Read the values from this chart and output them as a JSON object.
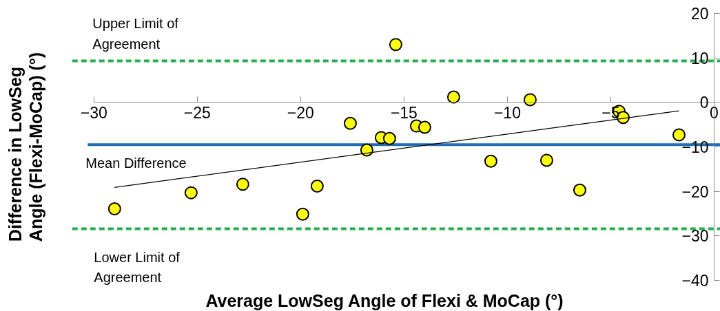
{
  "chart_data": {
    "type": "scatter",
    "xlabel": "Average LowSeg Angle of Flexi & MoCap (°)",
    "ylabel": "Difference in LowSeg\nAngle (Flexi-MoCap) (°)",
    "xlim": [
      -30,
      0
    ],
    "xticks": [
      -30,
      -25,
      -20,
      -15,
      -10,
      -5,
      0
    ],
    "ylim": [
      -40,
      20
    ],
    "yticks": [
      -40,
      -30,
      -20,
      -10,
      0,
      10,
      20
    ],
    "grid": false,
    "series": [
      {
        "color": "#ffff00",
        "marker": "circle",
        "x": [
          -29.0,
          -25.3,
          -22.8,
          -19.9,
          -19.2,
          -17.6,
          -16.8,
          -16.1,
          -15.7,
          -15.4,
          -14.4,
          -14.0,
          -12.6,
          -10.8,
          -8.9,
          -8.1,
          -6.5,
          -4.6,
          -4.4,
          -1.7
        ],
        "values": [
          -23.9,
          -20.3,
          -18.4,
          -25.1,
          -18.8,
          -4.7,
          -10.7,
          -7.9,
          -8.1,
          13.0,
          -5.3,
          -5.6,
          1.2,
          -13.2,
          0.6,
          -13.0,
          -19.7,
          -2.0,
          -3.4,
          -7.3
        ]
      },
      {
        "type": "line",
        "color": "#000000",
        "marker": "none",
        "x": [
          -29.0,
          -1.7
        ],
        "values": [
          -19.1,
          -1.9
        ]
      }
    ],
    "ref_lines": [
      {
        "axis": "y",
        "value": 9.3,
        "label": "Upper Limit of\nAgreement",
        "color": "#22b14c",
        "line_style": "dashed"
      },
      {
        "axis": "y",
        "value": -9.5,
        "label": "Mean Difference",
        "color": "#1f6eb4",
        "line_style": "solid"
      },
      {
        "axis": "y",
        "value": -28.4,
        "label": "Lower Limit of\nAgreement",
        "color": "#22b14c",
        "line_style": "dashed"
      }
    ]
  }
}
